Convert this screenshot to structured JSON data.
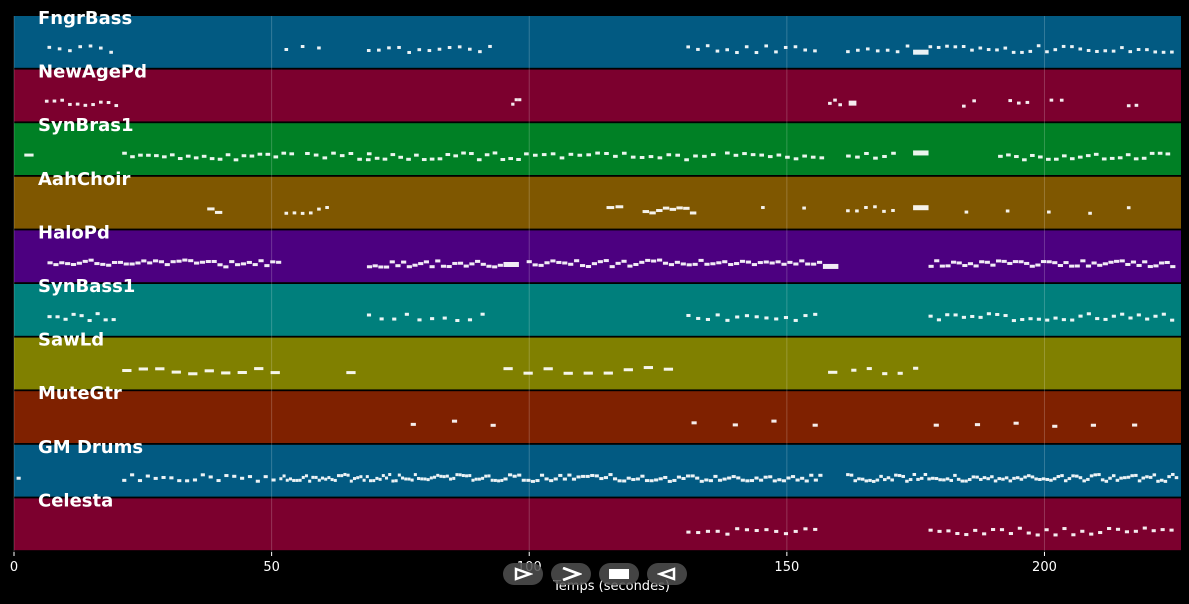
{
  "chart_data": {
    "type": "piano-roll",
    "xlabel": "Temps (secondes)",
    "xlim": [
      0,
      226.5
    ],
    "xticks": [
      0,
      50,
      100,
      150,
      200
    ],
    "grid": true,
    "tracks": [
      {
        "name": "FngrBass",
        "color": "#025a82",
        "segments": [
          [
            6.5,
            20.5,
            7,
            0.7
          ],
          [
            52.5,
            62,
            3,
            0.7
          ],
          [
            68.5,
            94,
            13,
            0.7
          ],
          [
            130.5,
            157,
            14,
            0.7
          ],
          [
            161.5,
            175,
            7,
            0.7
          ],
          [
            174.5,
            177.5,
            1,
            3
          ],
          [
            177.5,
            226,
            30,
            0.7
          ]
        ]
      },
      {
        "name": "NewAgePd",
        "color": "#7c002e",
        "segments": [
          [
            6,
            21,
            10,
            0.7
          ],
          [
            96.5,
            98.5,
            3,
            0.7
          ],
          [
            158,
            161,
            3,
            0.7
          ],
          [
            162,
            163.5,
            1,
            3
          ],
          [
            184,
            188,
            2,
            0.7
          ],
          [
            193,
            198,
            3,
            0.7
          ],
          [
            201,
            205,
            2,
            0.7
          ],
          [
            216,
            219,
            2,
            0.7
          ]
        ]
      },
      {
        "name": "SynBras1",
        "color": "#008025",
        "segments": [
          [
            2,
            5,
            1,
            1.8
          ],
          [
            21,
            55,
            22,
            0.9
          ],
          [
            56.5,
            70,
            8,
            0.9
          ],
          [
            68.5,
            99,
            20,
            0.9
          ],
          [
            99,
            137,
            22,
            0.9
          ],
          [
            138,
            158,
            12,
            0.9
          ],
          [
            161.5,
            172,
            6,
            0.9
          ],
          [
            174.5,
            177.5,
            1,
            3
          ],
          [
            191,
            222,
            20,
            0.9
          ],
          [
            222,
            225,
            2,
            0.9
          ]
        ]
      },
      {
        "name": "AahChoir",
        "color": "#7f5700",
        "segments": [
          [
            37.5,
            40.5,
            2,
            1.5
          ],
          [
            52.5,
            62,
            6,
            0.7
          ],
          [
            115,
            118.5,
            2,
            1.5
          ],
          [
            122,
            132.5,
            8,
            1.3
          ],
          [
            145,
            146.5,
            1,
            0.7
          ],
          [
            153,
            154.5,
            1,
            0.7
          ],
          [
            161.5,
            172,
            6,
            0.7
          ],
          [
            174.5,
            177.5,
            1,
            3
          ],
          [
            184.5,
            186,
            1,
            0.7
          ],
          [
            192.5,
            194,
            1,
            0.7
          ],
          [
            200.5,
            202,
            1,
            0.7
          ],
          [
            208.5,
            210,
            1,
            0.7
          ],
          [
            216,
            218,
            1,
            0.7
          ]
        ]
      },
      {
        "name": "HaloPd",
        "color": "#4c0080",
        "segments": [
          [
            6.5,
            52,
            40,
            1
          ],
          [
            68.5,
            95,
            24,
            1
          ],
          [
            95,
            99.5,
            1,
            3
          ],
          [
            99.5,
            157,
            50,
            1
          ],
          [
            157,
            162,
            1,
            3
          ],
          [
            177.5,
            225.5,
            44,
            1
          ]
        ]
      },
      {
        "name": "SynBass1",
        "color": "#007f7c",
        "segments": [
          [
            6.5,
            20.5,
            9,
            0.8
          ],
          [
            68.5,
            93,
            10,
            0.8
          ],
          [
            130.5,
            157,
            14,
            0.8
          ],
          [
            177.5,
            226,
            30,
            0.8
          ]
        ]
      },
      {
        "name": "SawLd",
        "color": "#808000",
        "segments": [
          [
            21,
            53,
            10,
            1.8
          ],
          [
            64.5,
            68.5,
            1,
            1.8
          ],
          [
            95,
            130,
            9,
            1.8
          ],
          [
            158,
            162.5,
            1,
            1.8
          ],
          [
            162.5,
            177.5,
            5,
            1
          ]
        ]
      },
      {
        "name": "MuteGtr",
        "color": "#7f2100",
        "segments": [
          [
            77,
            78,
            1,
            1
          ],
          [
            85,
            86,
            1,
            1
          ],
          [
            92.5,
            93.5,
            1,
            1
          ],
          [
            131.5,
            132.5,
            1,
            1
          ],
          [
            139.5,
            140.5,
            1,
            1
          ],
          [
            147,
            148,
            1,
            1
          ],
          [
            155,
            156,
            1,
            1
          ],
          [
            178.5,
            179.5,
            1,
            1
          ],
          [
            186.5,
            187.5,
            1,
            1
          ],
          [
            194,
            195,
            1,
            1
          ],
          [
            201.5,
            202.5,
            1,
            1
          ],
          [
            209,
            210,
            1,
            1
          ],
          [
            217,
            218,
            1,
            1
          ]
        ]
      },
      {
        "name": "GM Drums",
        "color": "#025a82",
        "segments": [
          [
            0.5,
            1.5,
            1,
            0.8
          ],
          [
            21,
            51.5,
            20,
            0.8
          ],
          [
            51.5,
            95,
            70,
            0.8
          ],
          [
            95,
            157,
            70,
            0.8
          ],
          [
            161.5,
            226,
            90,
            0.8
          ]
        ]
      },
      {
        "name": "Celesta",
        "color": "#7c002e",
        "segments": [
          [
            130.5,
            157,
            14,
            0.8
          ],
          [
            177.5,
            226,
            28,
            0.8
          ]
        ]
      }
    ]
  },
  "controls": [
    {
      "name": "play-button",
      "icon": "play-icon"
    },
    {
      "name": "fast-forward-button",
      "icon": "fast-forward-icon"
    },
    {
      "name": "stop-button",
      "icon": "stop-icon"
    },
    {
      "name": "rewind-button",
      "icon": "rewind-icon"
    }
  ]
}
